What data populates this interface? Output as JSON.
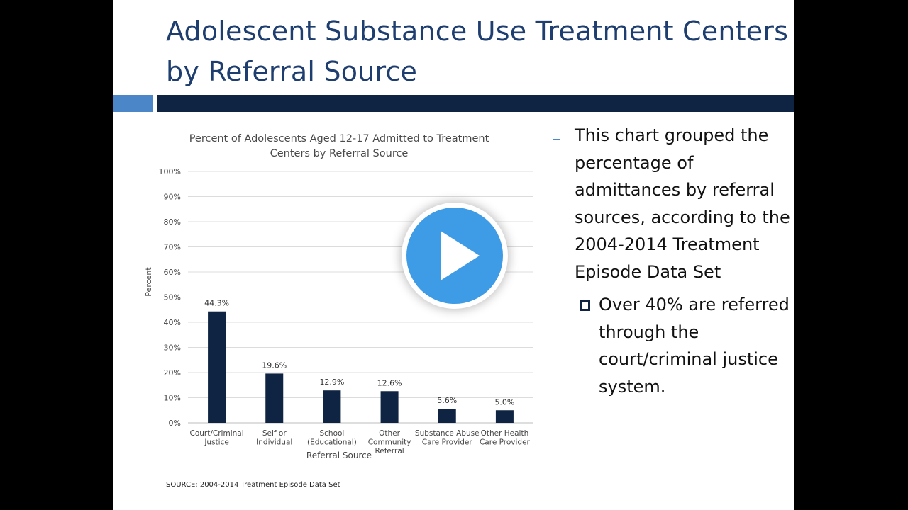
{
  "slide": {
    "title": "Adolescent Substance Use Treatment Centers by Referral Source",
    "source": "SOURCE: 2004-2014 Treatment Episode Data Set",
    "bullets": [
      {
        "text": "This chart grouped the percentage of admittances by referral sources, according to the 2004-2014 Treatment Episode Data Set",
        "sub": [
          {
            "text": "Over 40% are referred through the court/criminal justice system."
          }
        ]
      }
    ],
    "colors": {
      "title": "#1f3e70",
      "accent": "#4a86c8",
      "dark_bar": "#0f2342",
      "play": "#3e9be6"
    }
  },
  "play_button": {
    "icon": "play-icon"
  },
  "chart_data": {
    "type": "bar",
    "title": "Percent of Adolescents Aged 12-17 Admitted to Treatment Centers by Referral Source",
    "title_lines": [
      "Percent of Adolescents Aged 12-17 Admitted to Treatment",
      "Centers by Referral Source"
    ],
    "xlabel": "Referral Source",
    "ylabel": "Percent",
    "ylim": [
      0,
      100
    ],
    "yticks": [
      "0%",
      "10%",
      "20%",
      "30%",
      "40%",
      "50%",
      "60%",
      "70%",
      "80%",
      "90%",
      "100%"
    ],
    "categories": [
      [
        "Court/Criminal",
        "Justice"
      ],
      [
        "Self or",
        "Individual"
      ],
      [
        "School",
        "(Educational)"
      ],
      [
        "Other",
        "Community",
        "Referral"
      ],
      [
        "Substance Abuse",
        "Care Provider"
      ],
      [
        "Other Health",
        "Care Provider"
      ]
    ],
    "values": [
      44.3,
      19.6,
      12.9,
      12.6,
      5.6,
      5.0
    ],
    "data_labels": [
      "44.3%",
      "19.6%",
      "12.9%",
      "12.6%",
      "5.6%",
      "5.0%"
    ],
    "grid": true,
    "bar_color": "#0f2342"
  }
}
